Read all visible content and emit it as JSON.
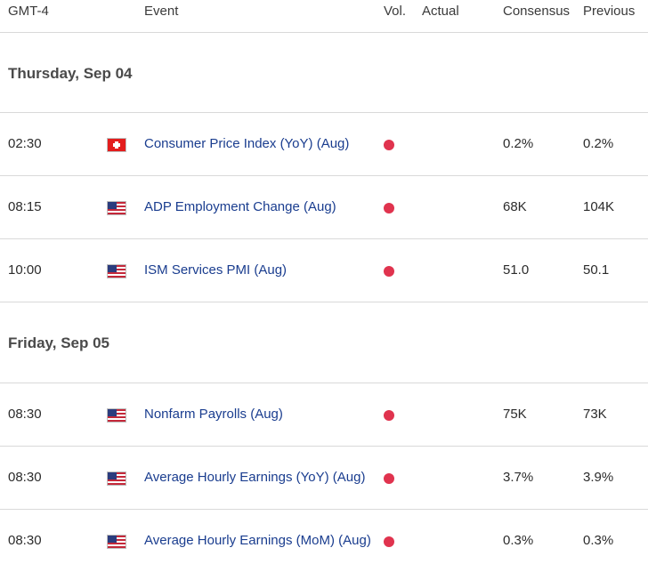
{
  "header": {
    "timezone": "GMT-4",
    "event": "Event",
    "vol": "Vol.",
    "actual": "Actual",
    "consensus": "Consensus",
    "previous": "Previous"
  },
  "colors": {
    "event_text": "#1a3d8f",
    "high_volatility": "#e0334e"
  },
  "days": [
    {
      "label": "Thursday, Sep 04",
      "events": [
        {
          "time": "02:30",
          "flag": "switzerland-flag-icon",
          "event": "Consumer Price Index (YoY) (Aug)",
          "volatility": "high",
          "actual": "",
          "consensus": "0.2%",
          "previous": "0.2%"
        },
        {
          "time": "08:15",
          "flag": "us-flag-icon",
          "event": "ADP Employment Change (Aug)",
          "volatility": "high",
          "actual": "",
          "consensus": "68K",
          "previous": "104K"
        },
        {
          "time": "10:00",
          "flag": "us-flag-icon",
          "event": "ISM Services PMI (Aug)",
          "volatility": "high",
          "actual": "",
          "consensus": "51.0",
          "previous": "50.1"
        }
      ]
    },
    {
      "label": "Friday, Sep 05",
      "events": [
        {
          "time": "08:30",
          "flag": "us-flag-icon",
          "event": "Nonfarm Payrolls (Aug)",
          "volatility": "high",
          "actual": "",
          "consensus": "75K",
          "previous": "73K"
        },
        {
          "time": "08:30",
          "flag": "us-flag-icon",
          "event": "Average Hourly Earnings (YoY) (Aug)",
          "volatility": "high",
          "actual": "",
          "consensus": "3.7%",
          "previous": "3.9%"
        },
        {
          "time": "08:30",
          "flag": "us-flag-icon",
          "event": "Average Hourly Earnings (MoM) (Aug)",
          "volatility": "high",
          "actual": "",
          "consensus": "0.3%",
          "previous": "0.3%"
        }
      ]
    }
  ]
}
